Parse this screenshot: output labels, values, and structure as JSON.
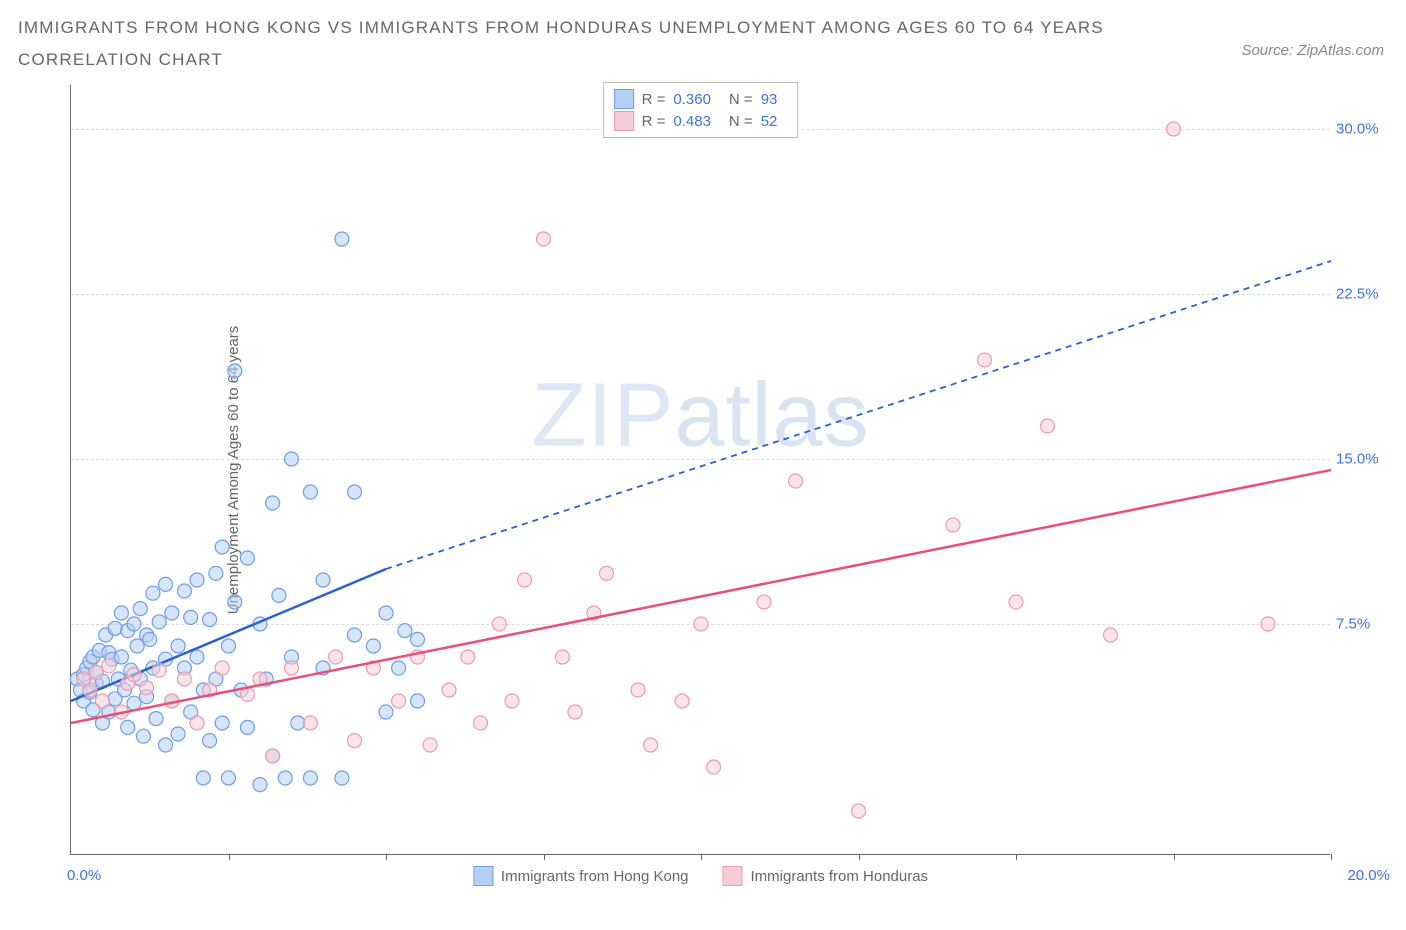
{
  "title_line1": "IMMIGRANTS FROM HONG KONG VS IMMIGRANTS FROM HONDURAS UNEMPLOYMENT AMONG AGES 60 TO 64 YEARS",
  "title_line2": "CORRELATION CHART",
  "source_text": "Source: ZipAtlas.com",
  "y_axis_label": "Unemployment Among Ages 60 to 64 years",
  "watermark_a": "ZIP",
  "watermark_b": "atlas",
  "axes": {
    "x_min": 0.0,
    "x_max": 20.0,
    "y_min": -3.0,
    "y_max": 32.0,
    "x_origin_label": "0.0%",
    "x_end_label": "20.0%",
    "x_tick_positions": [
      2.5,
      5.0,
      7.5,
      10.0,
      12.5,
      15.0,
      17.5,
      20.0
    ],
    "y_ticks": [
      {
        "v": 7.5,
        "label": "7.5%"
      },
      {
        "v": 15.0,
        "label": "15.0%"
      },
      {
        "v": 22.5,
        "label": "22.5%"
      },
      {
        "v": 30.0,
        "label": "30.0%"
      }
    ]
  },
  "colors": {
    "blue_fill": "#b7cff2",
    "blue_stroke": "#6f9de8",
    "blue_line": "#2a5fd0",
    "pink_fill": "#f6cdd7",
    "pink_stroke": "#eb9bb0",
    "pink_line": "#e94f77",
    "tick_text": "#3f73d8",
    "grid": "#dcdcdc"
  },
  "series": [
    {
      "key": "hk",
      "legend_label": "Immigrants from Hong Kong",
      "r_value": "0.360",
      "n_value": "93",
      "marker_radius": 7,
      "trend": {
        "x1": 0.0,
        "y1": 4.0,
        "x2_solid": 5.0,
        "y2_solid": 10.0,
        "x2": 20.0,
        "y2": 24.0
      },
      "points": [
        [
          0.1,
          5.0
        ],
        [
          0.15,
          4.5
        ],
        [
          0.2,
          5.2
        ],
        [
          0.2,
          4.0
        ],
        [
          0.25,
          5.5
        ],
        [
          0.3,
          4.4
        ],
        [
          0.3,
          5.8
        ],
        [
          0.35,
          3.6
        ],
        [
          0.35,
          6.0
        ],
        [
          0.4,
          4.8
        ],
        [
          0.4,
          5.3
        ],
        [
          0.45,
          6.3
        ],
        [
          0.5,
          3.0
        ],
        [
          0.5,
          4.9
        ],
        [
          0.55,
          7.0
        ],
        [
          0.6,
          6.2
        ],
        [
          0.6,
          3.5
        ],
        [
          0.65,
          5.9
        ],
        [
          0.7,
          7.3
        ],
        [
          0.7,
          4.1
        ],
        [
          0.75,
          5.0
        ],
        [
          0.8,
          8.0
        ],
        [
          0.8,
          6.0
        ],
        [
          0.85,
          4.5
        ],
        [
          0.9,
          7.2
        ],
        [
          0.9,
          2.8
        ],
        [
          0.95,
          5.4
        ],
        [
          1.0,
          7.5
        ],
        [
          1.0,
          3.9
        ],
        [
          1.05,
          6.5
        ],
        [
          1.1,
          8.2
        ],
        [
          1.1,
          5.0
        ],
        [
          1.15,
          2.4
        ],
        [
          1.2,
          7.0
        ],
        [
          1.2,
          4.2
        ],
        [
          1.25,
          6.8
        ],
        [
          1.3,
          8.9
        ],
        [
          1.3,
          5.5
        ],
        [
          1.35,
          3.2
        ],
        [
          1.4,
          7.6
        ],
        [
          1.5,
          9.3
        ],
        [
          1.5,
          5.9
        ],
        [
          1.5,
          2.0
        ],
        [
          1.6,
          8.0
        ],
        [
          1.6,
          4.0
        ],
        [
          1.7,
          6.5
        ],
        [
          1.7,
          2.5
        ],
        [
          1.8,
          9.0
        ],
        [
          1.8,
          5.5
        ],
        [
          1.9,
          7.8
        ],
        [
          1.9,
          3.5
        ],
        [
          2.0,
          6.0
        ],
        [
          2.0,
          9.5
        ],
        [
          2.1,
          4.5
        ],
        [
          2.1,
          0.5
        ],
        [
          2.2,
          7.7
        ],
        [
          2.2,
          2.2
        ],
        [
          2.3,
          9.8
        ],
        [
          2.3,
          5.0
        ],
        [
          2.4,
          11.0
        ],
        [
          2.4,
          3.0
        ],
        [
          2.5,
          0.5
        ],
        [
          2.5,
          6.5
        ],
        [
          2.6,
          19.0
        ],
        [
          2.6,
          8.5
        ],
        [
          2.7,
          4.5
        ],
        [
          2.8,
          10.5
        ],
        [
          2.8,
          2.8
        ],
        [
          3.0,
          7.5
        ],
        [
          3.0,
          0.2
        ],
        [
          3.1,
          5.0
        ],
        [
          3.2,
          13.0
        ],
        [
          3.2,
          1.5
        ],
        [
          3.3,
          8.8
        ],
        [
          3.4,
          0.5
        ],
        [
          3.5,
          6.0
        ],
        [
          3.5,
          15.0
        ],
        [
          3.6,
          3.0
        ],
        [
          3.8,
          13.5
        ],
        [
          3.8,
          0.5
        ],
        [
          4.0,
          9.5
        ],
        [
          4.0,
          5.5
        ],
        [
          4.3,
          0.5
        ],
        [
          4.3,
          25.0
        ],
        [
          4.5,
          7.0
        ],
        [
          4.5,
          13.5
        ],
        [
          4.8,
          6.5
        ],
        [
          5.0,
          8.0
        ],
        [
          5.0,
          3.5
        ],
        [
          5.2,
          5.5
        ],
        [
          5.3,
          7.2
        ],
        [
          5.5,
          6.8
        ],
        [
          5.5,
          4.0
        ]
      ]
    },
    {
      "key": "hn",
      "legend_label": "Immigrants from Honduras",
      "r_value": "0.483",
      "n_value": "52",
      "marker_radius": 7,
      "trend": {
        "x1": 0.0,
        "y1": 3.0,
        "x2_solid": 20.0,
        "y2_solid": 14.5,
        "x2": 20.0,
        "y2": 14.5
      },
      "points": [
        [
          0.2,
          5.0
        ],
        [
          0.3,
          4.5
        ],
        [
          0.4,
          5.3
        ],
        [
          0.5,
          4.0
        ],
        [
          0.6,
          5.6
        ],
        [
          0.8,
          3.5
        ],
        [
          0.9,
          4.8
        ],
        [
          1.0,
          5.2
        ],
        [
          1.2,
          4.6
        ],
        [
          1.4,
          5.4
        ],
        [
          1.6,
          4.0
        ],
        [
          1.8,
          5.0
        ],
        [
          2.0,
          3.0
        ],
        [
          2.2,
          4.5
        ],
        [
          2.4,
          5.5
        ],
        [
          2.8,
          4.3
        ],
        [
          3.0,
          5.0
        ],
        [
          3.2,
          1.5
        ],
        [
          3.5,
          5.5
        ],
        [
          3.8,
          3.0
        ],
        [
          4.2,
          6.0
        ],
        [
          4.5,
          2.2
        ],
        [
          4.8,
          5.5
        ],
        [
          5.2,
          4.0
        ],
        [
          5.5,
          6.0
        ],
        [
          5.7,
          2.0
        ],
        [
          6.0,
          4.5
        ],
        [
          6.3,
          6.0
        ],
        [
          6.5,
          3.0
        ],
        [
          6.8,
          7.5
        ],
        [
          7.0,
          4.0
        ],
        [
          7.2,
          9.5
        ],
        [
          7.5,
          25.0
        ],
        [
          7.8,
          6.0
        ],
        [
          8.0,
          3.5
        ],
        [
          8.3,
          8.0
        ],
        [
          8.5,
          9.8
        ],
        [
          9.0,
          4.5
        ],
        [
          9.2,
          2.0
        ],
        [
          9.7,
          4.0
        ],
        [
          10.0,
          7.5
        ],
        [
          10.2,
          1.0
        ],
        [
          11.0,
          8.5
        ],
        [
          11.5,
          14.0
        ],
        [
          12.5,
          -1.0
        ],
        [
          14.0,
          12.0
        ],
        [
          14.5,
          19.5
        ],
        [
          15.0,
          8.5
        ],
        [
          15.5,
          16.5
        ],
        [
          16.5,
          7.0
        ],
        [
          17.5,
          30.0
        ],
        [
          19.0,
          7.5
        ]
      ]
    }
  ]
}
